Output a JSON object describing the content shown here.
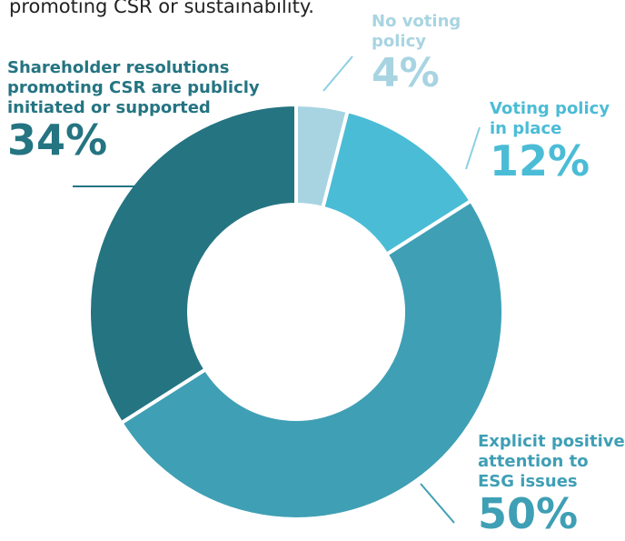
{
  "intro_text": "promoting CSR or sustainability.",
  "colors": {
    "no_voting_policy": "#a8d4e2",
    "voting_policy": "#4bbcd6",
    "esg_attention": "#3f9fb5",
    "shareholder_resolutions": "#257482",
    "leader_line": "#8ccfe0",
    "text_dark": "#222222"
  },
  "chart_data": {
    "type": "pie",
    "title": "",
    "slices": [
      {
        "label_lines": [
          "No voting",
          "policy"
        ],
        "value": 4,
        "value_label": "4%",
        "color": "#a8d4e2",
        "text_color": "#a8d4e2"
      },
      {
        "label_lines": [
          "Voting policy",
          "in place"
        ],
        "value": 12,
        "value_label": "12%",
        "color": "#4bbcd6",
        "text_color": "#4bbcd6"
      },
      {
        "label_lines": [
          "Explicit positive",
          "attention to",
          "ESG issues"
        ],
        "value": 50,
        "value_label": "50%",
        "color": "#3f9fb5",
        "text_color": "#3f9fb5"
      },
      {
        "label_lines": [
          "Shareholder resolutions",
          "promoting CSR are publicly",
          "initiated or supported"
        ],
        "value": 34,
        "value_label": "34%",
        "color": "#257482",
        "text_color": "#257482"
      }
    ]
  }
}
